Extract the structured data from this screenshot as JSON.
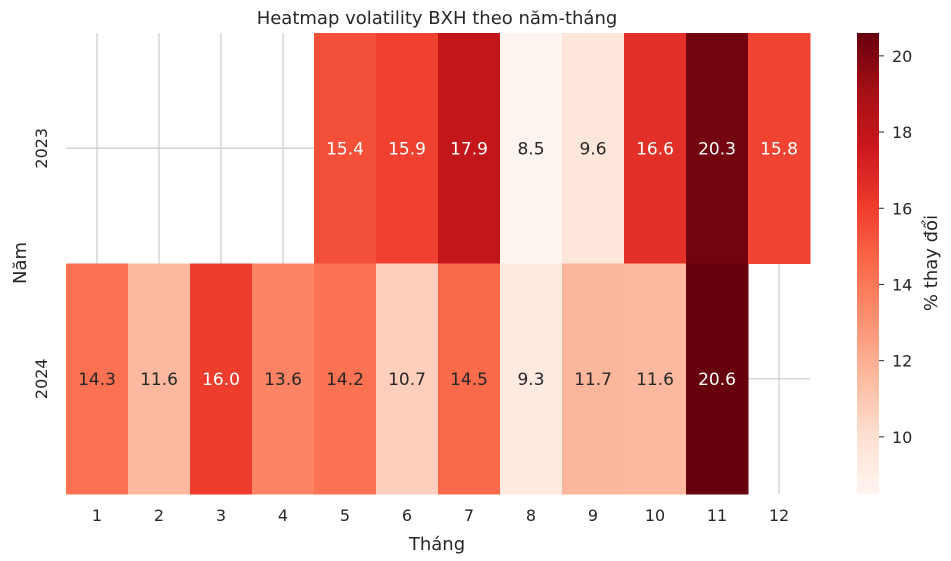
{
  "chart_data": {
    "type": "heatmap",
    "title": "Heatmap volatility BXH theo năm-tháng",
    "xlabel": "Tháng",
    "ylabel": "Năm",
    "x_categories": [
      "1",
      "2",
      "3",
      "4",
      "5",
      "6",
      "7",
      "8",
      "9",
      "10",
      "11",
      "12"
    ],
    "y_categories": [
      "2023",
      "2024"
    ],
    "values": [
      [
        null,
        null,
        null,
        null,
        15.4,
        15.9,
        17.9,
        8.5,
        9.6,
        16.6,
        20.3,
        15.8
      ],
      [
        14.3,
        11.6,
        16.0,
        13.6,
        14.2,
        10.7,
        14.5,
        9.3,
        11.7,
        11.6,
        20.6,
        null
      ]
    ],
    "colorbar": {
      "label": "% thay đổi",
      "min": 8.5,
      "max": 20.6,
      "ticks": [
        10,
        12,
        14,
        16,
        18,
        20
      ],
      "colormap": "Reds"
    },
    "grid": true,
    "colors": {
      "grid": "#cccccc",
      "text_dark": "#262626",
      "text_light": "#ffffff"
    }
  }
}
